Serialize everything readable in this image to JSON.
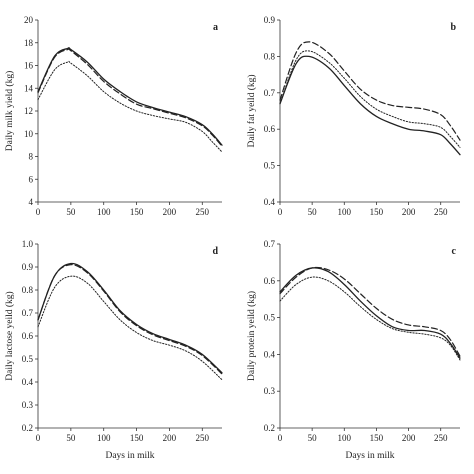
{
  "chart_data": [
    {
      "type": "line",
      "panel_label": "a",
      "xlabel": "",
      "ylabel": "Daily milk yield (kg)",
      "xlim": [
        0,
        280
      ],
      "ylim": [
        4,
        20
      ],
      "xticks": [
        "0",
        "50",
        "100",
        "150",
        "200",
        "250"
      ],
      "yticks": [
        "4",
        "6",
        "8",
        "10",
        "12",
        "14",
        "16",
        "18",
        "20"
      ],
      "grid": false,
      "series": [
        {
          "style": "solid",
          "x": [
            0,
            25,
            45,
            50,
            75,
            100,
            125,
            150,
            175,
            200,
            225,
            250,
            265,
            280
          ],
          "y": [
            13.7,
            16.8,
            17.5,
            17.4,
            16.3,
            14.8,
            13.7,
            12.8,
            12.3,
            11.9,
            11.5,
            10.8,
            10.0,
            9.0
          ]
        },
        {
          "style": "dashed",
          "x": [
            0,
            25,
            45,
            50,
            75,
            100,
            125,
            150,
            175,
            200,
            225,
            250,
            265,
            280
          ],
          "y": [
            13.6,
            16.7,
            17.4,
            17.3,
            16.1,
            14.6,
            13.5,
            12.6,
            12.2,
            11.8,
            11.4,
            10.7,
            9.9,
            8.9
          ]
        },
        {
          "style": "dotted",
          "x": [
            0,
            25,
            45,
            50,
            75,
            100,
            125,
            150,
            175,
            200,
            225,
            250,
            265,
            280
          ],
          "y": [
            13.0,
            15.6,
            16.3,
            16.2,
            15.1,
            13.7,
            12.7,
            12.0,
            11.6,
            11.3,
            11.0,
            10.2,
            9.3,
            8.4
          ]
        }
      ]
    },
    {
      "type": "line",
      "panel_label": "b",
      "xlabel": "",
      "ylabel": "Daily fat yeild (kg)",
      "xlim": [
        0,
        280
      ],
      "ylim": [
        0.4,
        0.9
      ],
      "xticks": [
        "0",
        "50",
        "100",
        "150",
        "200",
        "250"
      ],
      "yticks": [
        "0.4",
        "0.5",
        "0.6",
        "0.7",
        "0.8",
        "0.9"
      ],
      "grid": false,
      "series": [
        {
          "style": "solid",
          "x": [
            0,
            25,
            45,
            75,
            100,
            125,
            150,
            175,
            200,
            225,
            250,
            265,
            280
          ],
          "y": [
            0.67,
            0.78,
            0.8,
            0.77,
            0.72,
            0.67,
            0.635,
            0.615,
            0.6,
            0.595,
            0.585,
            0.56,
            0.53
          ]
        },
        {
          "style": "dashed",
          "x": [
            0,
            25,
            45,
            75,
            100,
            125,
            150,
            175,
            200,
            225,
            250,
            265,
            280
          ],
          "y": [
            0.68,
            0.81,
            0.84,
            0.81,
            0.76,
            0.71,
            0.68,
            0.665,
            0.66,
            0.655,
            0.64,
            0.61,
            0.57
          ]
        },
        {
          "style": "dotted",
          "x": [
            0,
            25,
            45,
            75,
            100,
            125,
            150,
            175,
            200,
            225,
            250,
            265,
            280
          ],
          "y": [
            0.67,
            0.79,
            0.815,
            0.785,
            0.74,
            0.69,
            0.655,
            0.635,
            0.62,
            0.615,
            0.605,
            0.58,
            0.55
          ]
        }
      ]
    },
    {
      "type": "line",
      "panel_label": "d",
      "xlabel": "Days in milk",
      "ylabel": "Daily lactose yeild (kg)",
      "xlim": [
        0,
        280
      ],
      "ylim": [
        0.2,
        1.0
      ],
      "xticks": [
        "0",
        "50",
        "100",
        "150",
        "200",
        "250"
      ],
      "yticks": [
        "0.2",
        "0.3",
        "0.4",
        "0.5",
        "0.6",
        "0.7",
        "0.8",
        "0.9",
        "1.0"
      ],
      "grid": false,
      "series": [
        {
          "style": "solid",
          "x": [
            0,
            25,
            50,
            75,
            100,
            125,
            150,
            175,
            200,
            225,
            250,
            280
          ],
          "y": [
            0.67,
            0.86,
            0.915,
            0.88,
            0.8,
            0.71,
            0.65,
            0.61,
            0.585,
            0.56,
            0.52,
            0.44
          ]
        },
        {
          "style": "dashed",
          "x": [
            0,
            25,
            50,
            75,
            100,
            125,
            150,
            175,
            200,
            225,
            250,
            280
          ],
          "y": [
            0.67,
            0.86,
            0.91,
            0.875,
            0.795,
            0.705,
            0.645,
            0.605,
            0.58,
            0.555,
            0.515,
            0.435
          ]
        },
        {
          "style": "dotted",
          "x": [
            0,
            25,
            50,
            75,
            100,
            125,
            150,
            175,
            200,
            225,
            250,
            280
          ],
          "y": [
            0.64,
            0.81,
            0.86,
            0.83,
            0.75,
            0.67,
            0.615,
            0.58,
            0.56,
            0.535,
            0.49,
            0.41
          ]
        }
      ]
    },
    {
      "type": "line",
      "panel_label": "c",
      "xlabel": "Days in milk",
      "ylabel": "Daily protein yeild (kg)",
      "xlim": [
        0,
        280
      ],
      "ylim": [
        0.2,
        0.7
      ],
      "xticks": [
        "0",
        "50",
        "100",
        "150",
        "200",
        "250"
      ],
      "yticks": [
        "0.2",
        "0.3",
        "0.4",
        "0.5",
        "0.6",
        "0.7"
      ],
      "grid": false,
      "series": [
        {
          "style": "solid",
          "x": [
            0,
            25,
            50,
            75,
            100,
            125,
            150,
            175,
            200,
            225,
            250,
            265,
            280
          ],
          "y": [
            0.57,
            0.615,
            0.635,
            0.625,
            0.59,
            0.545,
            0.505,
            0.475,
            0.465,
            0.465,
            0.455,
            0.43,
            0.39
          ]
        },
        {
          "style": "dashed",
          "x": [
            0,
            25,
            50,
            75,
            100,
            125,
            150,
            175,
            200,
            225,
            250,
            265,
            280
          ],
          "y": [
            0.565,
            0.61,
            0.635,
            0.63,
            0.605,
            0.565,
            0.525,
            0.495,
            0.48,
            0.475,
            0.465,
            0.44,
            0.395
          ]
        },
        {
          "style": "dotted",
          "x": [
            0,
            25,
            50,
            75,
            100,
            125,
            150,
            175,
            200,
            225,
            250,
            265,
            280
          ],
          "y": [
            0.545,
            0.59,
            0.61,
            0.6,
            0.57,
            0.53,
            0.495,
            0.47,
            0.46,
            0.455,
            0.445,
            0.425,
            0.385
          ]
        }
      ]
    }
  ]
}
